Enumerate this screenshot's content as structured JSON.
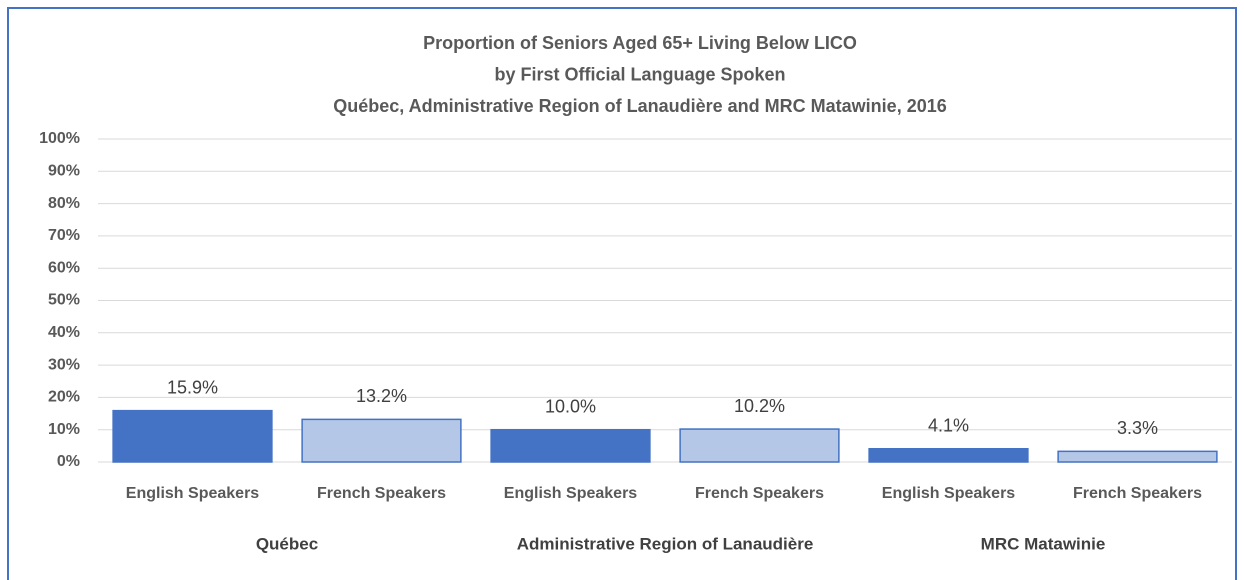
{
  "chart_data": {
    "type": "bar",
    "title": [
      "Proportion of Seniors Aged 65+ Living Below LICO",
      "by First Official Language Spoken",
      "Québec, Administrative Region of Lanaudière and MRC Matawinie, 2016"
    ],
    "groups": [
      {
        "name": "Québec",
        "categories": [
          "English Speakers",
          "French Speakers"
        ],
        "values": [
          15.9,
          13.2
        ],
        "value_labels": [
          "15.9%",
          "13.2%"
        ]
      },
      {
        "name": "Administrative Region of Lanaudière",
        "categories": [
          "English Speakers",
          "French Speakers"
        ],
        "values": [
          10.0,
          10.2
        ],
        "value_labels": [
          "10.0%",
          "10.2%"
        ]
      },
      {
        "name": "MRC Matawinie",
        "categories": [
          "English Speakers",
          "French Speakers"
        ],
        "values": [
          4.1,
          3.3
        ],
        "value_labels": [
          "4.1%",
          "3.3%"
        ]
      }
    ],
    "colors": [
      "#4472c4",
      "#b4c7e7"
    ],
    "ylim": [
      0,
      100
    ],
    "yticks": [
      {
        "value": 0,
        "label": "0%"
      },
      {
        "value": 10,
        "label": "10%"
      },
      {
        "value": 20,
        "label": "20%"
      },
      {
        "value": 30,
        "label": "30%"
      },
      {
        "value": 40,
        "label": "40%"
      },
      {
        "value": 50,
        "label": "50%"
      },
      {
        "value": 60,
        "label": "60%"
      },
      {
        "value": 70,
        "label": "70%"
      },
      {
        "value": 80,
        "label": "80%"
      },
      {
        "value": 90,
        "label": "90%"
      },
      {
        "value": 100,
        "label": "100%"
      }
    ],
    "grid": true
  }
}
